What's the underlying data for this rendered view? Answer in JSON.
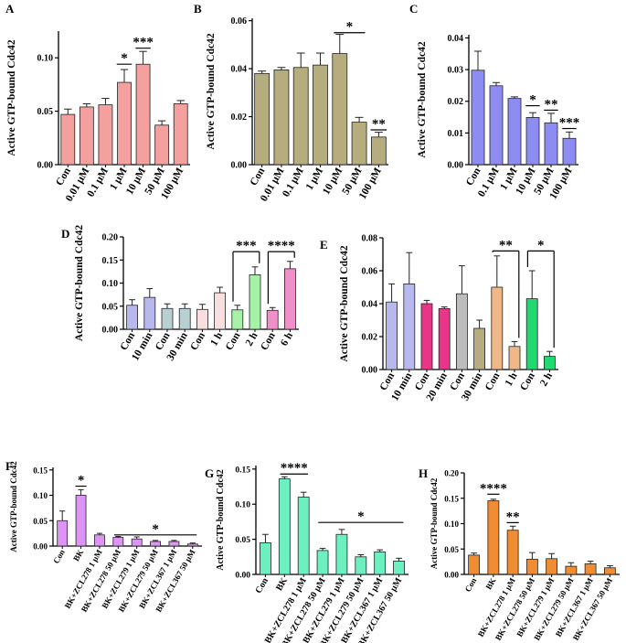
{
  "chart_data": [
    {
      "panel": "A",
      "type": "bar",
      "ylabel": "Active GTP-bound Cdc42",
      "ylim": [
        0,
        0.125
      ],
      "yticks": [
        0,
        0.05,
        0.1
      ],
      "ytick_labels": [
        "0.00",
        "0.05",
        "0.10"
      ],
      "categories": [
        "Con",
        "0.01 μM",
        "0.1 μM",
        "1 μM",
        "10 μM",
        "50 μM",
        "100 μM"
      ],
      "values": [
        0.047,
        0.054,
        0.056,
        0.077,
        0.094,
        0.037,
        0.057
      ],
      "errors": [
        0.005,
        0.003,
        0.006,
        0.012,
        0.012,
        0.004,
        0.003
      ],
      "colors": [
        "#f4a09e"
      ],
      "annotations": [
        {
          "from": 3,
          "to": 3,
          "label": "*",
          "y": 0.094
        },
        {
          "from": 4,
          "to": 4,
          "label": "***",
          "y": 0.109
        }
      ]
    },
    {
      "panel": "B",
      "type": "bar",
      "ylabel": "Active GTP-bound Cdc42",
      "ylim": [
        0,
        0.061
      ],
      "yticks": [
        0,
        0.02,
        0.04,
        0.06
      ],
      "ytick_labels": [
        "0.00",
        "0.02",
        "0.04",
        "0.06"
      ],
      "categories": [
        "Con",
        "0.01 μM",
        "0.1 μM",
        "1 μM",
        "10 μM",
        "50 μM",
        "100 μM"
      ],
      "values": [
        0.038,
        0.0395,
        0.0405,
        0.0415,
        0.0463,
        0.0177,
        0.0115
      ],
      "errors": [
        0.001,
        0.001,
        0.006,
        0.005,
        0.008,
        0.002,
        0.002
      ],
      "colors": [
        "#b5ad7d"
      ],
      "annotations": [
        {
          "from": 4,
          "to": 5,
          "label": "*",
          "y": 0.055
        },
        {
          "from": 6,
          "to": 6,
          "label": "**",
          "y": 0.0145
        }
      ]
    },
    {
      "panel": "C",
      "type": "bar",
      "ylabel": "Active GTP-bound Cdc42",
      "ylim": [
        0,
        0.041
      ],
      "yticks": [
        0,
        0.01,
        0.02,
        0.03,
        0.04
      ],
      "ytick_labels": [
        "0.00",
        "0.01",
        "0.02",
        "0.03",
        "0.04"
      ],
      "categories": [
        "Con",
        "0.1 μM",
        "1 μM",
        "10 μM",
        "50 μM",
        "100 μM"
      ],
      "values": [
        0.0298,
        0.0249,
        0.0209,
        0.0149,
        0.0132,
        0.0083
      ],
      "errors": [
        0.006,
        0.001,
        0.0005,
        0.0015,
        0.003,
        0.002
      ],
      "colors": [
        "#8c8cf2"
      ],
      "annotations": [
        {
          "from": 3,
          "to": 3,
          "label": "*",
          "y": 0.0186
        },
        {
          "from": 4,
          "to": 4,
          "label": "**",
          "y": 0.0172
        },
        {
          "from": 5,
          "to": 5,
          "label": "***",
          "y": 0.0114
        }
      ]
    },
    {
      "panel": "D",
      "type": "bar",
      "ylabel": "Active GTP-bound Cdc42",
      "ylim": [
        0,
        0.2
      ],
      "yticks": [
        0,
        0.05,
        0.1,
        0.15,
        0.2
      ],
      "ytick_labels": [
        "0.00",
        "0.05",
        "0.10",
        "0.15",
        "0.20"
      ],
      "categories": [
        "Con",
        "10 min",
        "Con",
        "30 min",
        "Con",
        "1 h",
        "Con",
        "2 h",
        "Con",
        "6 h"
      ],
      "values": [
        0.052,
        0.069,
        0.045,
        0.045,
        0.043,
        0.079,
        0.042,
        0.118,
        0.041,
        0.131
      ],
      "errors": [
        0.012,
        0.019,
        0.01,
        0.01,
        0.011,
        0.012,
        0.01,
        0.017,
        0.006,
        0.016
      ],
      "colors": [
        "#b8b8ef",
        "#b8b8ef",
        "#b8d0d0",
        "#b8d0d0",
        "#f8dede",
        "#f8dede",
        "#a6f2a6",
        "#a6f2a6",
        "#f090c8",
        "#f090c8"
      ],
      "annotations": [
        {
          "from": 6,
          "to": 7,
          "label": "***",
          "y": 0.168,
          "bracket": true
        },
        {
          "from": 8,
          "to": 9,
          "label": "****",
          "y": 0.168,
          "bracket": true
        }
      ]
    },
    {
      "panel": "E",
      "type": "bar",
      "ylabel": "Active GTP-bound Cdc42",
      "ylim": [
        0,
        0.08
      ],
      "yticks": [
        0,
        0.02,
        0.04,
        0.06,
        0.08
      ],
      "ytick_labels": [
        "0.00",
        "0.02",
        "0.04",
        "0.06",
        "0.08"
      ],
      "categories": [
        "Con",
        "10 min",
        "Con",
        "20 min",
        "Con",
        "30 min",
        "Con",
        "1 h",
        "Con",
        "2 h"
      ],
      "values": [
        0.041,
        0.052,
        0.04,
        0.037,
        0.046,
        0.025,
        0.05,
        0.014,
        0.043,
        0.008
      ],
      "errors": [
        0.011,
        0.019,
        0.002,
        0.001,
        0.017,
        0.005,
        0.019,
        0.003,
        0.017,
        0.003
      ],
      "colors": [
        "#b8b8ef",
        "#b8b8ef",
        "#e8358a",
        "#e8358a",
        "#bdbdbd",
        "#b5ad7d",
        "#f0b888",
        "#f0b888",
        "#22d870",
        "#22d870"
      ],
      "annotations": [
        {
          "from": 6,
          "to": 7,
          "label": "**",
          "y": 0.072,
          "bracket": true
        },
        {
          "from": 8,
          "to": 9,
          "label": "*",
          "y": 0.072,
          "bracket": true
        }
      ]
    },
    {
      "panel": "F",
      "type": "bar",
      "ylabel": "Active GTP-bound Cdc42",
      "ylim": [
        0,
        0.155
      ],
      "yticks": [
        0,
        0.05,
        0.1,
        0.15
      ],
      "ytick_labels": [
        "0.00",
        "0.05",
        "0.10",
        "0.15"
      ],
      "categories": [
        "Con",
        "BK",
        "BK+ZCL278 1 μM",
        "BK+ZCL278 50 μM",
        "BK+ZCL279 1 μM",
        "BK+ZCL279 50 μM",
        "BK+ZCL367 1 μM",
        "BK+ZCL367 50 μM"
      ],
      "values": [
        0.05,
        0.1,
        0.022,
        0.017,
        0.014,
        0.009,
        0.009,
        0.004
      ],
      "errors": [
        0.019,
        0.011,
        0.003,
        0.002,
        0.004,
        0.002,
        0.002,
        0.002
      ],
      "colors": [
        "#de94f4"
      ],
      "annotations": [
        {
          "from": 1,
          "to": 1,
          "label": "*",
          "y": 0.118
        },
        {
          "from": 3,
          "to": 7,
          "label": "*",
          "y": 0.022
        }
      ]
    },
    {
      "panel": "G",
      "type": "bar",
      "ylabel": "Active GTP-bound Cdc42",
      "ylim": [
        0,
        0.155
      ],
      "yticks": [
        0,
        0.05,
        0.1,
        0.15
      ],
      "ytick_labels": [
        "0.00",
        "0.05",
        "0.10",
        "0.15"
      ],
      "categories": [
        "Con",
        "BK",
        "BK+ZCL278 1 μM",
        "BK+ZCL278 50 μM",
        "BK+ZCL279 1 μM",
        "BK+ZCL279 50 μM",
        "BK+ZCL367 1 μM",
        "BK+ZCL367 50 μM"
      ],
      "values": [
        0.045,
        0.136,
        0.11,
        0.034,
        0.057,
        0.025,
        0.032,
        0.019
      ],
      "errors": [
        0.012,
        0.003,
        0.007,
        0.003,
        0.007,
        0.003,
        0.003,
        0.004
      ],
      "colors": [
        "#6df0c0"
      ],
      "annotations": [
        {
          "from": 1,
          "to": 2,
          "label": "****",
          "y": 0.143
        },
        {
          "from": 3,
          "to": 7,
          "label": "*",
          "y": 0.074
        }
      ]
    },
    {
      "panel": "H",
      "type": "bar",
      "ylabel": "Active GTP-bound Cdc42",
      "ylim": [
        0,
        0.2
      ],
      "yticks": [
        0,
        0.05,
        0.1,
        0.15,
        0.2
      ],
      "ytick_labels": [
        "0.00",
        "0.05",
        "0.10",
        "0.15",
        "0.20"
      ],
      "categories": [
        "Con",
        "BK",
        "BK+ZCL278 1 μM",
        "BK+ZCL278 50 μM",
        "BK+ZCL279 1 μM",
        "BK+ZCL279 50 μM",
        "BK+ZCL367 1 μM",
        "BK+ZCL367 50 μM"
      ],
      "values": [
        0.038,
        0.145,
        0.087,
        0.03,
        0.031,
        0.016,
        0.021,
        0.013
      ],
      "errors": [
        0.004,
        0.003,
        0.008,
        0.013,
        0.01,
        0.007,
        0.005,
        0.004
      ],
      "colors": [
        "#f08c32"
      ],
      "annotations": [
        {
          "from": 1,
          "to": 1,
          "label": "****",
          "y": 0.158
        },
        {
          "from": 2,
          "to": 2,
          "label": "**",
          "y": 0.102
        }
      ]
    }
  ]
}
